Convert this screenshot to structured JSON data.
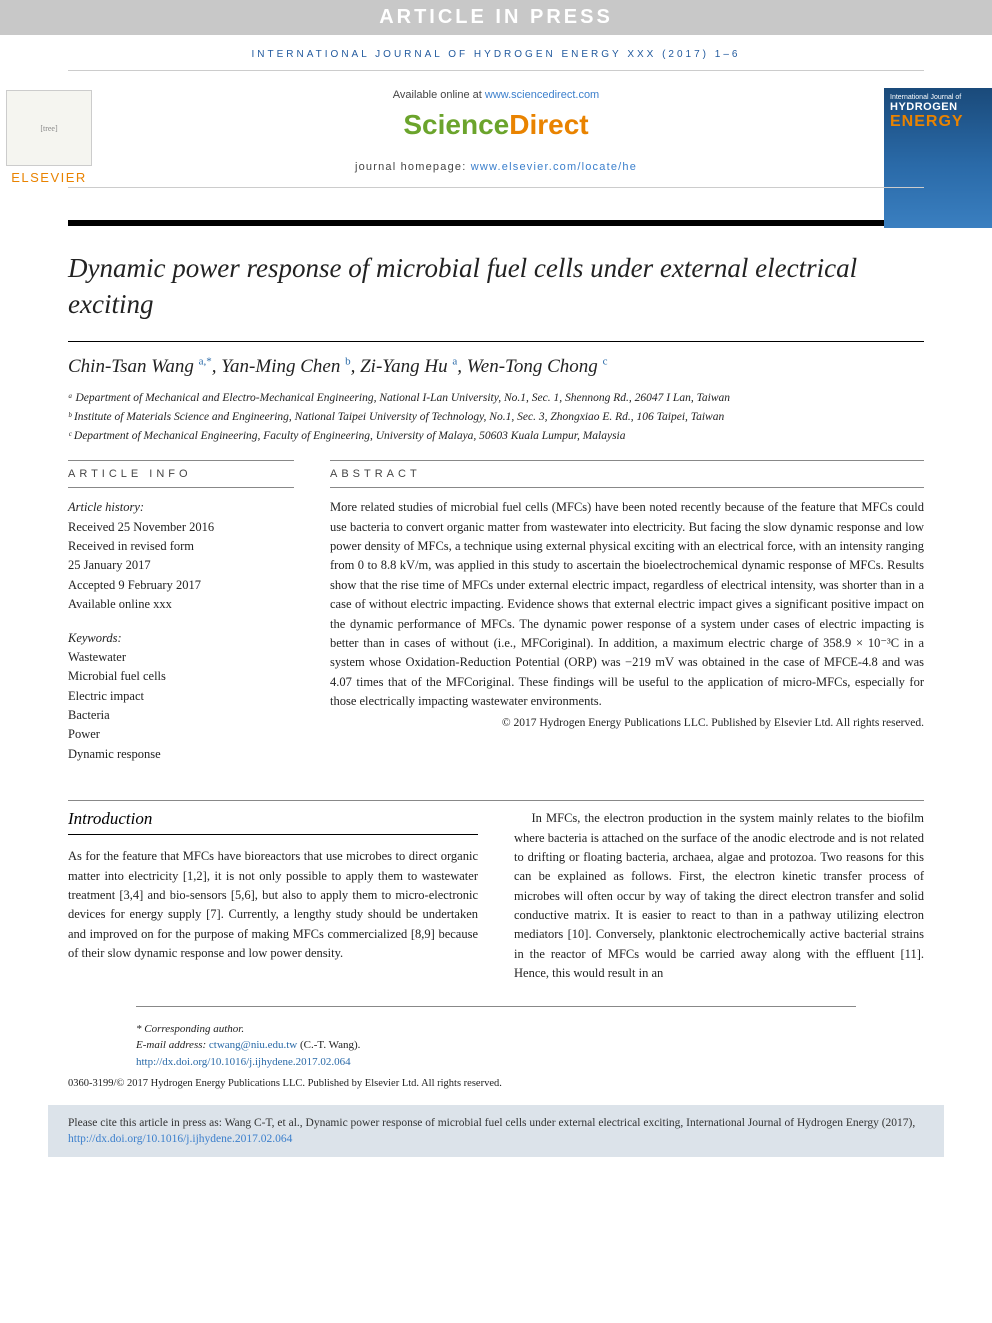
{
  "banner": {
    "article_in_press": "ARTICLE IN PRESS",
    "journal_ref": "INTERNATIONAL JOURNAL OF HYDROGEN ENERGY XXX (2017) 1–6"
  },
  "header": {
    "available_text": "Available online at ",
    "available_link": "www.sciencedirect.com",
    "sd_left": "Science",
    "sd_right": "Direct",
    "home_label": "journal homepage: ",
    "home_link": "www.elsevier.com/locate/he",
    "elsevier_label": "ELSEVIER",
    "cover_line1": "International Journal of",
    "cover_line2": "HYDROGEN",
    "cover_line3": "ENERGY"
  },
  "title": "Dynamic power response of microbial fuel cells under external electrical exciting",
  "authors": {
    "a1_name": "Chin-Tsan Wang ",
    "a1_sup": "a,*",
    "sep": ", ",
    "a2_name": "Yan-Ming Chen ",
    "a2_sup": "b",
    "a3_name": "Zi-Yang Hu ",
    "a3_sup": "a",
    "a4_name": "Wen-Tong Chong ",
    "a4_sup": "c"
  },
  "affiliations": {
    "a": "ᵃ Department of Mechanical and Electro-Mechanical Engineering, National I-Lan University, No.1, Sec. 1, Shennong Rd., 26047 I Lan, Taiwan",
    "b": "ᵇ Institute of Materials Science and Engineering, National Taipei University of Technology, No.1, Sec. 3, Zhongxiao E. Rd., 106 Taipei, Taiwan",
    "c": "ᶜ Department of Mechanical Engineering, Faculty of Engineering, University of Malaya, 50603 Kuala Lumpur, Malaysia"
  },
  "info": {
    "heading": "ARTICLE INFO",
    "history_label": "Article history:",
    "received": "Received 25 November 2016",
    "revised1": "Received in revised form",
    "revised2": "25 January 2017",
    "accepted": "Accepted 9 February 2017",
    "online": "Available online xxx",
    "keywords_label": "Keywords:",
    "kw1": "Wastewater",
    "kw2": "Microbial fuel cells",
    "kw3": "Electric impact",
    "kw4": "Bacteria",
    "kw5": "Power",
    "kw6": "Dynamic response"
  },
  "abstract": {
    "heading": "ABSTRACT",
    "text": "More related studies of microbial fuel cells (MFCs) have been noted recently because of the feature that MFCs could use bacteria to convert organic matter from wastewater into electricity. But facing the slow dynamic response and low power density of MFCs, a technique using external physical exciting with an electrical force, with an intensity ranging from 0 to 8.8 kV/m, was applied in this study to ascertain the bioelectrochemical dynamic response of MFCs. Results show that the rise time of MFCs under external electric impact, regardless of electrical intensity, was shorter than in a case of without electric impacting. Evidence shows that external electric impact gives a significant positive impact on the dynamic performance of MFCs. The dynamic power response of a system under cases of electric impacting is better than in cases of without (i.e., MFCoriginal). In addition, a maximum electric charge of 358.9 × 10⁻³C in a system whose Oxidation-Reduction Potential (ORP) was −219 mV was obtained in the case of MFCE-4.8 and was 4.07 times that of the MFCoriginal. These findings will be useful to the application of micro-MFCs, especially for those electrically impacting wastewater environments.",
    "copyright": "© 2017 Hydrogen Energy Publications LLC. Published by Elsevier Ltd. All rights reserved."
  },
  "intro": {
    "heading": "Introduction",
    "col1": "As for the feature that MFCs have bioreactors that use microbes to direct organic matter into electricity [1,2], it is not only possible to apply them to wastewater treatment [3,4] and bio-sensors [5,6], but also to apply them to micro-electronic devices for energy supply [7]. Currently, a lengthy study should be undertaken and improved on for the purpose of making MFCs commercialized [8,9] because of their slow dynamic response and low power density.",
    "col2": "In MFCs, the electron production in the system mainly relates to the biofilm where bacteria is attached on the surface of the anodic electrode and is not related to drifting or floating bacteria, archaea, algae and protozoa. Two reasons for this can be explained as follows. First, the electron kinetic transfer process of microbes will often occur by way of taking the direct electron transfer and solid conductive matrix. It is easier to react to than in a pathway utilizing electron mediators [10]. Conversely, planktonic electrochemically active bacterial strains in the reactor of MFCs would be carried away along with the effluent [11]. Hence, this would result in an"
  },
  "footnotes": {
    "corr": "* Corresponding author.",
    "email_label": "E-mail address: ",
    "email": "ctwang@niu.edu.tw",
    "email_tail": " (C.-T. Wang).",
    "doi": "http://dx.doi.org/10.1016/j.ijhydene.2017.02.064",
    "issn": "0360-3199/© 2017 Hydrogen Energy Publications LLC. Published by Elsevier Ltd. All rights reserved."
  },
  "citebox": {
    "text": "Please cite this article in press as: Wang C-T, et al., Dynamic power response of microbial fuel cells under external electrical exciting, International Journal of Hydrogen Energy (2017), ",
    "link": "http://dx.doi.org/10.1016/j.ijhydene.2017.02.064"
  },
  "colors": {
    "link_blue": "#3b7fcc",
    "sd_green": "#6ba42c",
    "sd_orange": "#e98300",
    "banner_gray": "#c8c8c8",
    "citebox_bg": "#dce3ea",
    "cover_blue_top": "#1a4a7a",
    "cover_blue_bottom": "#3a7fc0"
  }
}
